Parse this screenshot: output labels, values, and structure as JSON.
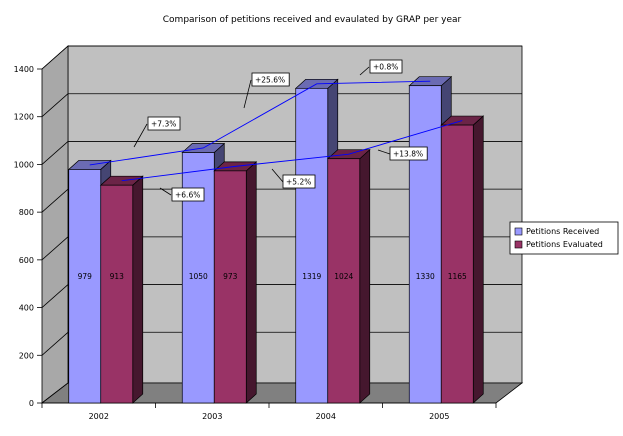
{
  "chart_data": {
    "type": "bar",
    "title": "Comparison of petitions received and evaulated by GRAP per year",
    "categories": [
      "2002",
      "2003",
      "2004",
      "2005"
    ],
    "series": [
      {
        "name": "Petitions Received",
        "values": [
          979,
          1050,
          1319,
          1330
        ],
        "labels": [
          "979",
          "1050",
          "1319",
          "1330"
        ],
        "color": "#9999ff"
      },
      {
        "name": "Petitions Evaluated",
        "values": [
          913,
          973,
          1024,
          1165
        ],
        "labels": [
          "913",
          "973",
          "1024",
          "1165"
        ],
        "color": "#993366"
      }
    ],
    "ylim": [
      0,
      1400
    ],
    "yticks": [
      "0",
      "200",
      "400",
      "600",
      "800",
      "1000",
      "1200",
      "1400"
    ],
    "grid": true,
    "legend_position": "right",
    "annotations": {
      "received_changes": [
        "+7.3%",
        "+25.6%",
        "+0.8%"
      ],
      "evaluated_changes": [
        "+6.6%",
        "+5.2%",
        "+13.8%"
      ]
    },
    "colors": {
      "wall": "#c0c0c0",
      "floor": "#808080",
      "trend_line": "#0000ff"
    }
  }
}
